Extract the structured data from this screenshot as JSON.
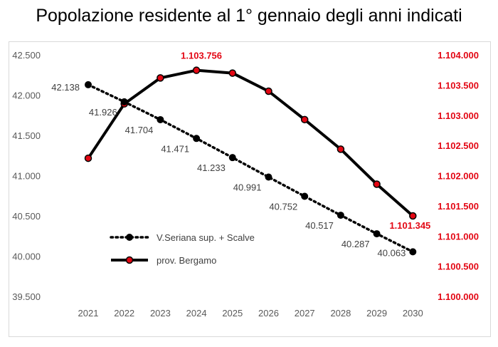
{
  "chart_data": {
    "type": "line",
    "title": "Popolazione residente al 1° gennaio degli anni indicati",
    "categories": [
      "2021",
      "2022",
      "2023",
      "2024",
      "2025",
      "2026",
      "2027",
      "2028",
      "2029",
      "2030"
    ],
    "series": [
      {
        "name": "V.Seriana sup. + Scalve",
        "axis": "left",
        "color": "#000000",
        "style": "dotted",
        "values": [
          42138,
          41926,
          41704,
          41471,
          41233,
          40991,
          40752,
          40517,
          40287,
          40063
        ],
        "labels": [
          "42.138",
          "41.926",
          "41.704",
          "41.471",
          "41.233",
          "40.991",
          "40.752",
          "40.517",
          "40.287",
          "40.063"
        ]
      },
      {
        "name": "prov. Bergamo",
        "axis": "right",
        "color": "#000000",
        "marker_color": "#e30613",
        "style": "solid",
        "values": [
          1102300,
          1103200,
          1103630,
          1103756,
          1103710,
          1103410,
          1102940,
          1102450,
          1101870,
          1101345
        ],
        "labels": [
          "",
          "",
          "",
          "1.103.756",
          "",
          "",
          "",
          "",
          "",
          "1.101.345"
        ]
      }
    ],
    "y_left": {
      "min": 39500,
      "max": 42500,
      "ticks": [
        "39.500",
        "40.000",
        "40.500",
        "41.000",
        "41.500",
        "42.000",
        "42.500"
      ]
    },
    "y_right": {
      "min": 1100000,
      "max": 1104000,
      "ticks": [
        "1.100.000",
        "1.100.500",
        "1.101.000",
        "1.101.500",
        "1.102.000",
        "1.102.500",
        "1.103.000",
        "1.103.500",
        "1.104.000"
      ]
    },
    "legend": [
      "V.Seriana sup. + Scalve",
      "prov. Bergamo"
    ],
    "grid": false
  }
}
